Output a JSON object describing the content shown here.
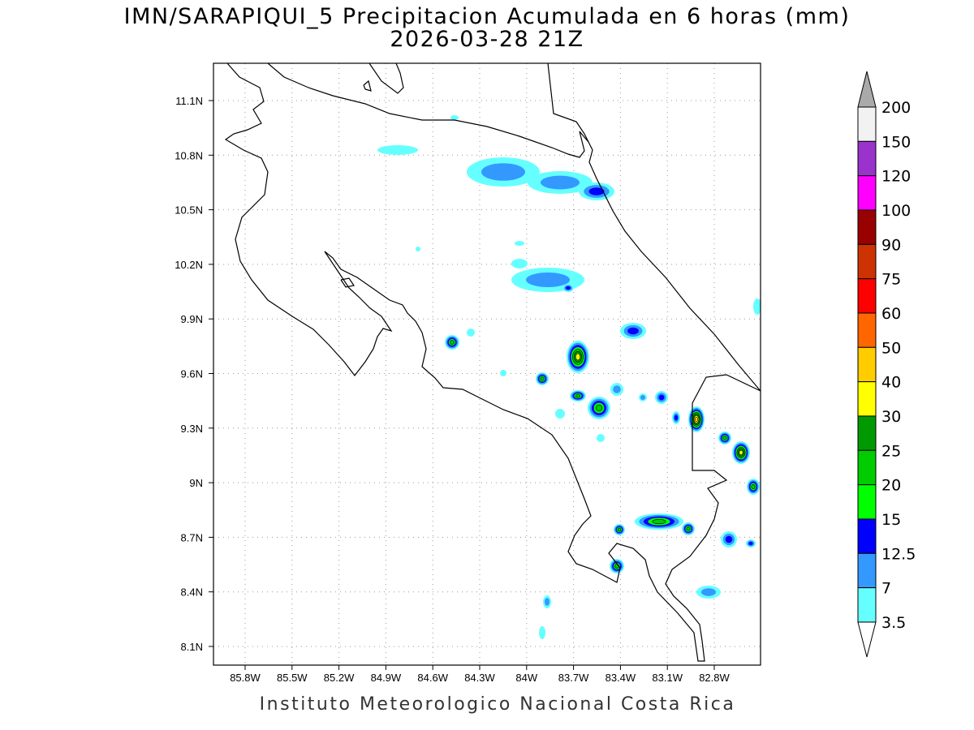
{
  "title": {
    "line1": "IMN/SARAPIQUI_5 Precipitacion Acumulada en 6 horas (mm)",
    "line2": "2026-03-28 21Z"
  },
  "map": {
    "lon_labels": [
      "85.8W",
      "85.5W",
      "85.2W",
      "84.9W",
      "84.6W",
      "84.3W",
      "84W",
      "83.7W",
      "83.4W",
      "83.1W",
      "82.8W"
    ],
    "lat_labels": [
      "11.1N",
      "10.8N",
      "10.5N",
      "10.2N",
      "9.9N",
      "9.6N",
      "9.3N",
      "9N",
      "8.7N",
      "8.4N",
      "8.1N"
    ]
  },
  "colorbar": {
    "labels": [
      "200",
      "150",
      "120",
      "100",
      "90",
      "75",
      "60",
      "50",
      "40",
      "30",
      "25",
      "20",
      "15",
      "12.5",
      "7",
      "3.5"
    ],
    "colors": [
      "#f2f2f2",
      "#9933cc",
      "#ff00ff",
      "#990000",
      "#cc3300",
      "#ff0000",
      "#ff6600",
      "#ffcc00",
      "#ffff00",
      "#009900",
      "#00cc00",
      "#00ff00",
      "#0000ff",
      "#3399ff",
      "#66ffff"
    ],
    "over_color": "#aaaaaa",
    "under_color": "#ffffff"
  },
  "credit": "Instituto Meteorologico Nacional Costa Rica"
}
